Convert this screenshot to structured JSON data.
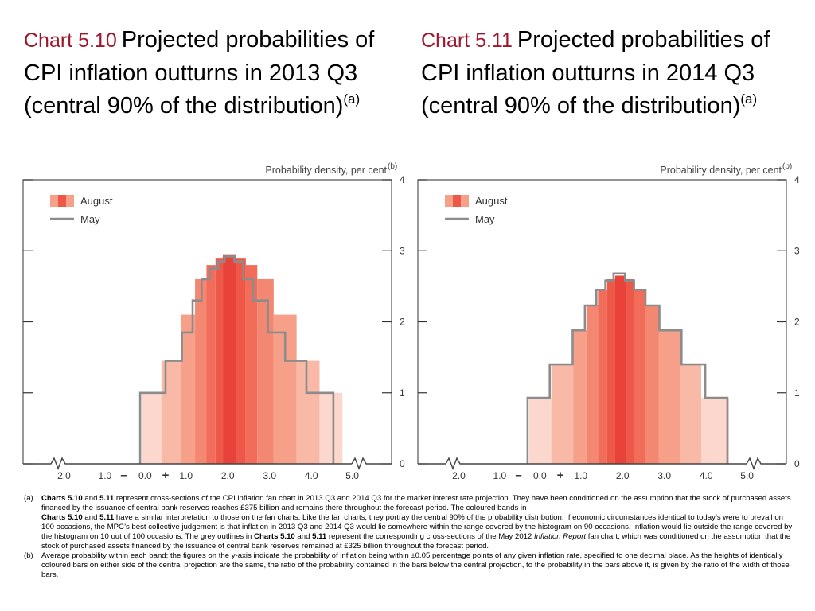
{
  "charts": {
    "left": {
      "number": "Chart 5.10",
      "title": "Projected probabilities of CPI inflation outturns in 2013 Q3 (central 90% of the distribution)",
      "title_sup": "(a)"
    },
    "right": {
      "number": "Chart 5.11",
      "title": "Projected probabilities of CPI inflation outturns in 2014 Q3 (central 90% of the distribution)",
      "title_sup": "(a)"
    }
  },
  "notes": {
    "a_label": "(a)",
    "a_p1_b1": "Charts 5.10",
    "a_p1_t1": " and ",
    "a_p1_b2": "5.11",
    "a_p1_t2": " represent cross-sections of the CPI inflation fan chart in 2013 Q3 and 2014 Q3 for the market interest rate projection.  They have been conditioned on the assumption that the stock of purchased assets financed by the issuance of central bank reserves reaches £375 billion and remains there throughout the forecast period.  The coloured bands in",
    "a_p2_b1": "Charts 5.10",
    "a_p2_t1": " and ",
    "a_p2_b2": "5.11",
    "a_p2_t2": " have a similar interpretation to those on the fan charts.  Like the fan charts, they portray the central 90% of the probability distribution.  If economic circumstances identical to today’s were to prevail on 100 occasions, the MPC’s best collective judgement is that inflation in 2013 Q3 and 2014 Q3 would lie somewhere within the range covered by the histogram on 90 occasions.  Inflation would lie outside the range covered by the histogram on 10 out of 100 occasions.  The grey outlines in ",
    "a_p2_b3": "Charts 5.10",
    "a_p2_t3": " and ",
    "a_p2_b4": "5.11",
    "a_p2_t4": " represent the corresponding cross-sections of the May 2012 ",
    "a_p2_i1": "Inflation Report",
    "a_p2_t5": " fan chart, which was conditioned on the assumption that the stock of purchased assets financed by the issuance of central bank reserves remained at £325 billion throughout the forecast period.",
    "b_label": "(b)",
    "b_text": "Average probability within each band;  the figures on the y-axis indicate the probability of inflation being within ±0.05 percentage points of any given inflation rate, specified to one decimal place.  As the heights of identically coloured bars on either side of the central projection are the same, the ratio of the probability contained in the bars below the central projection, to the probability in the bars above it, is given by the ratio of the width of those bars."
  },
  "chart_data": [
    {
      "type": "bar",
      "ylabel": "Probability density, per cent",
      "ylabel_sup": "(b)",
      "xlim": [
        1.5,
        6.0
      ],
      "ylim": [
        0,
        4
      ],
      "y_ticks": [
        "0",
        "1",
        "2",
        "3",
        "4"
      ],
      "x_ticks": [
        {
          "label": "2.0",
          "x": 2.0
        },
        {
          "label": "1.0",
          "x": 2.5
        },
        {
          "label": "–",
          "x": 2.73
        },
        {
          "label": "0.0",
          "x": 2.99
        },
        {
          "label": "+",
          "x": 3.24
        },
        {
          "label": "1.0",
          "x": 3.49
        },
        {
          "label": "2.0",
          "x": 4.0
        },
        {
          "label": "3.0",
          "x": 4.51
        },
        {
          "label": "4.0",
          "x": 5.02
        },
        {
          "label": "5.0",
          "x": 5.52
        }
      ],
      "legend": [
        {
          "label": "August",
          "kind": "fan"
        },
        {
          "label": "May",
          "kind": "outline"
        }
      ],
      "colors": [
        "#fcd7cd",
        "#f9b9a7",
        "#f6a08a",
        "#f48771",
        "#f16d59",
        "#ee5849",
        "#e8423a"
      ],
      "bands": [
        {
          "x0": 2.95,
          "x1": 3.19,
          "y": 1.0,
          "level": 0
        },
        {
          "x0": 3.19,
          "x1": 3.43,
          "y": 1.45,
          "level": 1
        },
        {
          "x0": 3.43,
          "x1": 3.6,
          "y": 2.1,
          "level": 2
        },
        {
          "x0": 3.6,
          "x1": 3.74,
          "y": 2.6,
          "level": 3
        },
        {
          "x0": 3.74,
          "x1": 3.85,
          "y": 2.8,
          "level": 4
        },
        {
          "x0": 3.85,
          "x1": 3.94,
          "y": 2.9,
          "level": 5
        },
        {
          "x0": 3.94,
          "x1": 4.1,
          "y": 2.95,
          "level": 6
        },
        {
          "x0": 4.1,
          "x1": 4.22,
          "y": 2.9,
          "level": 5
        },
        {
          "x0": 4.22,
          "x1": 4.36,
          "y": 2.8,
          "level": 4
        },
        {
          "x0": 4.36,
          "x1": 4.56,
          "y": 2.6,
          "level": 3
        },
        {
          "x0": 4.56,
          "x1": 4.84,
          "y": 2.1,
          "level": 2
        },
        {
          "x0": 4.84,
          "x1": 5.12,
          "y": 1.45,
          "level": 1
        },
        {
          "x0": 5.12,
          "x1": 5.4,
          "y": 1.0,
          "level": 0
        }
      ],
      "may_outline": [
        [
          2.93,
          0
        ],
        [
          2.93,
          1.0
        ],
        [
          3.24,
          1.0
        ],
        [
          3.24,
          1.45
        ],
        [
          3.44,
          1.45
        ],
        [
          3.44,
          1.85
        ],
        [
          3.57,
          1.85
        ],
        [
          3.57,
          2.3
        ],
        [
          3.68,
          2.3
        ],
        [
          3.68,
          2.6
        ],
        [
          3.78,
          2.6
        ],
        [
          3.78,
          2.75
        ],
        [
          3.88,
          2.75
        ],
        [
          3.88,
          2.85
        ],
        [
          3.96,
          2.85
        ],
        [
          3.96,
          2.92
        ],
        [
          4.08,
          2.92
        ],
        [
          4.08,
          2.85
        ],
        [
          4.19,
          2.85
        ],
        [
          4.19,
          2.6
        ],
        [
          4.31,
          2.6
        ],
        [
          4.31,
          2.3
        ],
        [
          4.49,
          2.3
        ],
        [
          4.49,
          1.85
        ],
        [
          4.7,
          1.85
        ],
        [
          4.7,
          1.45
        ],
        [
          4.96,
          1.45
        ],
        [
          4.96,
          1.0
        ],
        [
          5.29,
          1.0
        ],
        [
          5.29,
          0
        ]
      ]
    },
    {
      "type": "bar",
      "ylabel": "Probability density, per cent",
      "ylabel_sup": "(b)",
      "xlim": [
        1.5,
        6.0
      ],
      "ylim": [
        0,
        4
      ],
      "y_ticks": [
        "0",
        "1",
        "2",
        "3",
        "4"
      ],
      "x_ticks": [
        {
          "label": "2.0",
          "x": 2.0
        },
        {
          "label": "1.0",
          "x": 2.5
        },
        {
          "label": "–",
          "x": 2.73
        },
        {
          "label": "0.0",
          "x": 2.99
        },
        {
          "label": "+",
          "x": 3.24
        },
        {
          "label": "1.0",
          "x": 3.49
        },
        {
          "label": "2.0",
          "x": 4.0
        },
        {
          "label": "3.0",
          "x": 4.51
        },
        {
          "label": "4.0",
          "x": 5.02
        },
        {
          "label": "5.0",
          "x": 5.52
        }
      ],
      "legend": [
        {
          "label": "August",
          "kind": "fan"
        },
        {
          "label": "May",
          "kind": "outline"
        }
      ],
      "colors": [
        "#fcd7cd",
        "#f9b9a7",
        "#f6a08a",
        "#f48771",
        "#f16d59",
        "#ee5849",
        "#e8423a"
      ],
      "bands": [
        {
          "x0": 2.86,
          "x1": 3.13,
          "y": 0.93,
          "level": 0
        },
        {
          "x0": 3.13,
          "x1": 3.4,
          "y": 1.4,
          "level": 1
        },
        {
          "x0": 3.4,
          "x1": 3.56,
          "y": 1.88,
          "level": 2
        },
        {
          "x0": 3.56,
          "x1": 3.7,
          "y": 2.23,
          "level": 3
        },
        {
          "x0": 3.7,
          "x1": 3.81,
          "y": 2.45,
          "level": 4
        },
        {
          "x0": 3.81,
          "x1": 3.91,
          "y": 2.6,
          "level": 5
        },
        {
          "x0": 3.91,
          "x1": 4.04,
          "y": 2.65,
          "level": 6
        },
        {
          "x0": 4.04,
          "x1": 4.14,
          "y": 2.6,
          "level": 5
        },
        {
          "x0": 4.14,
          "x1": 4.27,
          "y": 2.45,
          "level": 4
        },
        {
          "x0": 4.27,
          "x1": 4.44,
          "y": 2.23,
          "level": 3
        },
        {
          "x0": 4.44,
          "x1": 4.7,
          "y": 1.88,
          "level": 2
        },
        {
          "x0": 4.7,
          "x1": 4.96,
          "y": 1.4,
          "level": 1
        },
        {
          "x0": 4.96,
          "x1": 5.3,
          "y": 0.93,
          "level": 0
        }
      ],
      "may_outline": [
        [
          2.84,
          0
        ],
        [
          2.84,
          0.93
        ],
        [
          3.11,
          0.93
        ],
        [
          3.11,
          1.4
        ],
        [
          3.39,
          1.4
        ],
        [
          3.39,
          1.88
        ],
        [
          3.54,
          1.88
        ],
        [
          3.54,
          2.23
        ],
        [
          3.68,
          2.23
        ],
        [
          3.68,
          2.45
        ],
        [
          3.79,
          2.45
        ],
        [
          3.79,
          2.58
        ],
        [
          3.89,
          2.58
        ],
        [
          3.89,
          2.68
        ],
        [
          4.03,
          2.68
        ],
        [
          4.03,
          2.58
        ],
        [
          4.14,
          2.58
        ],
        [
          4.14,
          2.45
        ],
        [
          4.28,
          2.45
        ],
        [
          4.28,
          2.23
        ],
        [
          4.45,
          2.23
        ],
        [
          4.45,
          1.88
        ],
        [
          4.72,
          1.88
        ],
        [
          4.72,
          1.4
        ],
        [
          5.01,
          1.4
        ],
        [
          5.01,
          0.93
        ],
        [
          5.28,
          0.93
        ],
        [
          5.28,
          0
        ]
      ]
    }
  ]
}
